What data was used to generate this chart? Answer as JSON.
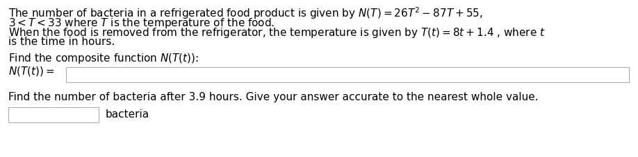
{
  "bg_color": "#ffffff",
  "line1": "The number of bacteria in a refrigerated food product is given by $N(T) = 26T^2 - 87T + 55,$",
  "line2": "$3 < T < 33$ where $T$ is the temperature of the food.",
  "line3": "When the food is removed from the refrigerator, the temperature is given by $T(t) = 8t + 1.4$ , where $t$",
  "line4": "is the time in hours.",
  "line5": "Find the composite function $N(T(t))$:",
  "line6_label": "$N(T(t)) =$",
  "line7": "Find the number of bacteria after 3.9 hours. Give your answer accurate to the nearest whole value.",
  "bacteria_label": "bacteria",
  "font_size": 11,
  "text_color": "#000000",
  "box_edge_color": "#aaaaaa"
}
